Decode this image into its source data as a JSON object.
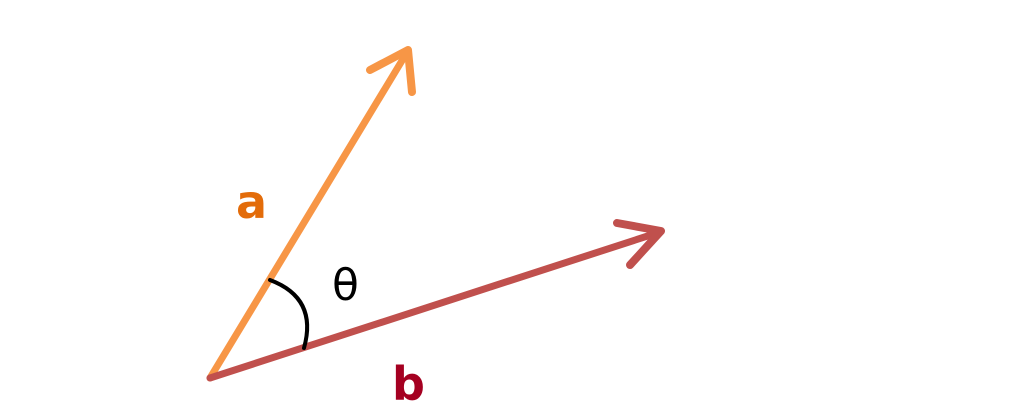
{
  "diagram": {
    "vectors": [
      {
        "label": "a",
        "color": "#f79646",
        "label_color": "#e36c0a"
      },
      {
        "label": "b",
        "color": "#c0504d",
        "label_color": "#a50021"
      }
    ],
    "angle": {
      "label": "θ",
      "color": "#000000"
    }
  }
}
